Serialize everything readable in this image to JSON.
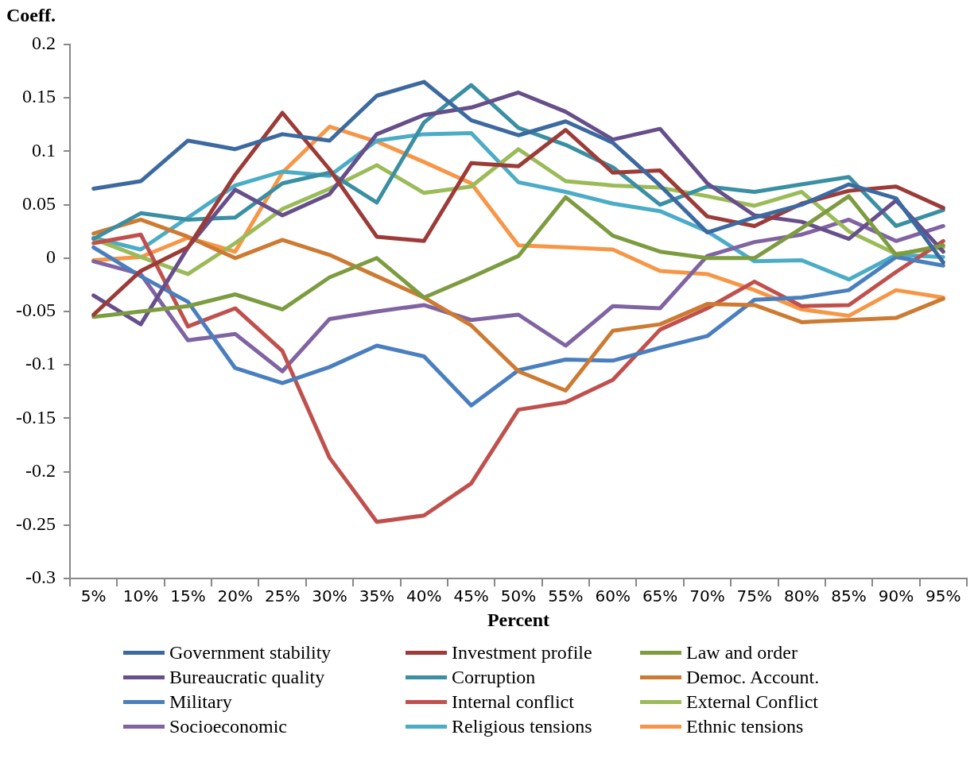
{
  "chart_data": {
    "type": "line",
    "ylabel": "Coeff.",
    "xlabel": "Percent",
    "categories": [
      "5%",
      "10%",
      "15%",
      "20%",
      "25%",
      "30%",
      "35%",
      "40%",
      "45%",
      "50%",
      "55%",
      "60%",
      "65%",
      "70%",
      "75%",
      "80%",
      "85%",
      "90%",
      "95%"
    ],
    "ylim": [
      -0.3,
      0.2
    ],
    "yticks": [
      -0.3,
      -0.25,
      -0.2,
      -0.15,
      -0.1,
      -0.05,
      0,
      0.05,
      0.1,
      0.15,
      0.2
    ],
    "grid": false,
    "legend": "bottom",
    "marker": "none",
    "line_style": "solid",
    "series": [
      {
        "name": "Government stability",
        "color": "#3c6aa0",
        "values": [
          0.065,
          0.072,
          0.11,
          0.102,
          0.116,
          0.11,
          0.152,
          0.165,
          0.129,
          0.115,
          0.128,
          0.108,
          0.068,
          0.024,
          0.038,
          0.05,
          0.069,
          0.056,
          -0.004
        ]
      },
      {
        "name": "Investment profile",
        "color": "#9c3b37",
        "values": [
          -0.053,
          -0.012,
          0.01,
          0.078,
          0.136,
          0.083,
          0.02,
          0.016,
          0.089,
          0.086,
          0.12,
          0.08,
          0.082,
          0.039,
          0.03,
          0.051,
          0.063,
          0.067,
          0.047
        ]
      },
      {
        "name": "Law and order",
        "color": "#7d9c40",
        "values": [
          -0.055,
          -0.05,
          -0.045,
          -0.034,
          -0.048,
          -0.018,
          0.0,
          -0.037,
          -0.018,
          0.002,
          0.057,
          0.021,
          0.006,
          0.0,
          0.0,
          0.028,
          0.058,
          0.003,
          0.012
        ]
      },
      {
        "name": "Bureaucratic quality",
        "color": "#664f8a",
        "values": [
          -0.035,
          -0.062,
          0.01,
          0.064,
          0.04,
          0.06,
          0.116,
          0.134,
          0.141,
          0.155,
          0.137,
          0.111,
          0.121,
          0.07,
          0.04,
          0.034,
          0.018,
          0.054,
          0.006
        ]
      },
      {
        "name": "Corruption",
        "color": "#3a8fa3",
        "values": [
          0.018,
          0.042,
          0.036,
          0.038,
          0.07,
          0.08,
          0.052,
          0.127,
          0.162,
          0.122,
          0.106,
          0.085,
          0.05,
          0.067,
          0.062,
          0.069,
          0.076,
          0.03,
          0.045
        ]
      },
      {
        "name": "Democ. Account.",
        "color": "#cd7a32",
        "values": [
          0.023,
          0.036,
          0.02,
          0.0,
          0.017,
          0.003,
          -0.017,
          -0.037,
          -0.063,
          -0.106,
          -0.124,
          -0.068,
          -0.062,
          -0.043,
          -0.044,
          -0.06,
          -0.058,
          -0.056,
          -0.038
        ]
      },
      {
        "name": "Military",
        "color": "#4a7fbf",
        "values": [
          0.01,
          -0.017,
          -0.041,
          -0.103,
          -0.117,
          -0.102,
          -0.082,
          -0.092,
          -0.138,
          -0.105,
          -0.095,
          -0.096,
          -0.084,
          -0.073,
          -0.039,
          -0.037,
          -0.03,
          0.001,
          -0.007
        ]
      },
      {
        "name": "Internal conflict",
        "color": "#c0504d",
        "values": [
          0.014,
          0.022,
          -0.064,
          -0.047,
          -0.087,
          -0.187,
          -0.247,
          -0.241,
          -0.211,
          -0.142,
          -0.135,
          -0.114,
          -0.067,
          -0.047,
          -0.022,
          -0.045,
          -0.044,
          -0.013,
          0.016
        ]
      },
      {
        "name": "External Conflict",
        "color": "#9bbb59",
        "values": [
          0.018,
          0.001,
          -0.015,
          0.014,
          0.046,
          0.065,
          0.087,
          0.061,
          0.067,
          0.102,
          0.072,
          0.068,
          0.066,
          0.058,
          0.049,
          0.062,
          0.025,
          0.004,
          0.01
        ]
      },
      {
        "name": "Socioeconomic",
        "color": "#8064a2",
        "values": [
          -0.003,
          -0.015,
          -0.077,
          -0.071,
          -0.106,
          -0.057,
          -0.05,
          -0.044,
          -0.058,
          -0.053,
          -0.082,
          -0.045,
          -0.047,
          0.002,
          0.015,
          0.022,
          0.036,
          0.016,
          0.03
        ]
      },
      {
        "name": "Religious tensions",
        "color": "#4bacc6",
        "values": [
          0.019,
          0.008,
          0.038,
          0.068,
          0.081,
          0.077,
          0.11,
          0.116,
          0.117,
          0.071,
          0.062,
          0.051,
          0.044,
          0.025,
          -0.003,
          -0.002,
          -0.02,
          0.003,
          0.001
        ]
      },
      {
        "name": "Ethnic tensions",
        "color": "#f79646",
        "values": [
          -0.002,
          0.001,
          0.019,
          0.006,
          0.08,
          0.123,
          0.109,
          0.09,
          0.07,
          0.012,
          0.01,
          0.008,
          -0.012,
          -0.015,
          -0.03,
          -0.048,
          -0.054,
          -0.03,
          -0.037
        ]
      }
    ]
  }
}
